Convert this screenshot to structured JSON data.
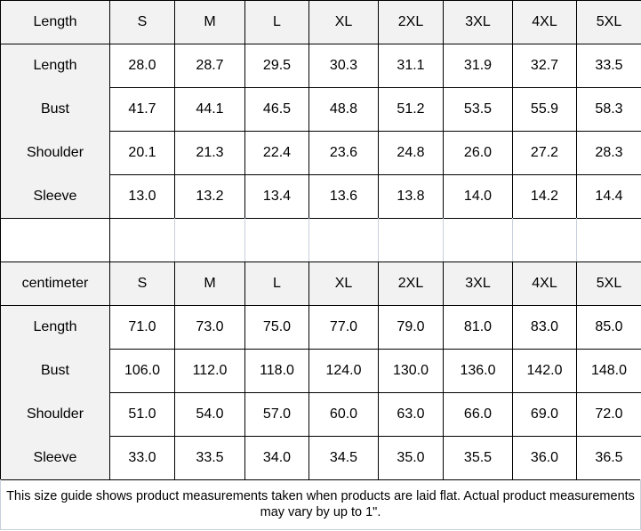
{
  "inch_table": {
    "header": [
      "Length",
      "S",
      "M",
      "L",
      "XL",
      "2XL",
      "3XL",
      "4XL",
      "5XL"
    ],
    "rows": [
      [
        "Length",
        "28.0",
        "28.7",
        "29.5",
        "30.3",
        "31.1",
        "31.9",
        "32.7",
        "33.5"
      ],
      [
        "Bust",
        "41.7",
        "44.1",
        "46.5",
        "48.8",
        "51.2",
        "53.5",
        "55.9",
        "58.3"
      ],
      [
        "Shoulder",
        "20.1",
        "21.3",
        "22.4",
        "23.6",
        "24.8",
        "26.0",
        "27.2",
        "28.3"
      ],
      [
        "Sleeve",
        "13.0",
        "13.2",
        "13.4",
        "13.6",
        "13.8",
        "14.0",
        "14.2",
        "14.4"
      ]
    ]
  },
  "cm_table": {
    "header": [
      "centimeter",
      "S",
      "M",
      "L",
      "XL",
      "2XL",
      "3XL",
      "4XL",
      "5XL"
    ],
    "rows": [
      [
        "Length",
        "71.0",
        "73.0",
        "75.0",
        "77.0",
        "79.0",
        "81.0",
        "83.0",
        "85.0"
      ],
      [
        "Bust",
        "106.0",
        "112.0",
        "118.0",
        "124.0",
        "130.0",
        "136.0",
        "142.0",
        "148.0"
      ],
      [
        "Shoulder",
        "51.0",
        "54.0",
        "57.0",
        "60.0",
        "63.0",
        "66.0",
        "69.0",
        "72.0"
      ],
      [
        "Sleeve",
        "33.0",
        "33.5",
        "34.0",
        "34.5",
        "35.0",
        "35.5",
        "36.0",
        "36.5"
      ]
    ]
  },
  "note": "This size guide shows product measurements taken when products are laid flat. Actual product measurements may vary by up to 1\"."
}
